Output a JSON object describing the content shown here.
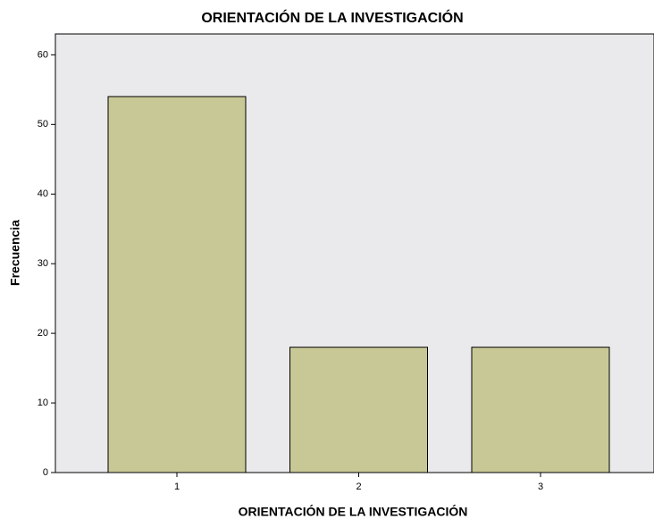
{
  "chart_data": {
    "type": "bar",
    "title": "ORIENTACIÓN DE LA INVESTIGACIÓN",
    "x_label": "ORIENTACIÓN DE LA INVESTIGACIÓN",
    "y_label": "Frecuencia",
    "categories": [
      "1",
      "2",
      "3"
    ],
    "values": [
      54,
      18,
      18
    ],
    "color": "#c8c896",
    "ylim": [
      0,
      63
    ],
    "yticks": [
      0,
      10,
      20,
      30,
      40,
      50,
      60
    ],
    "grid": false
  }
}
